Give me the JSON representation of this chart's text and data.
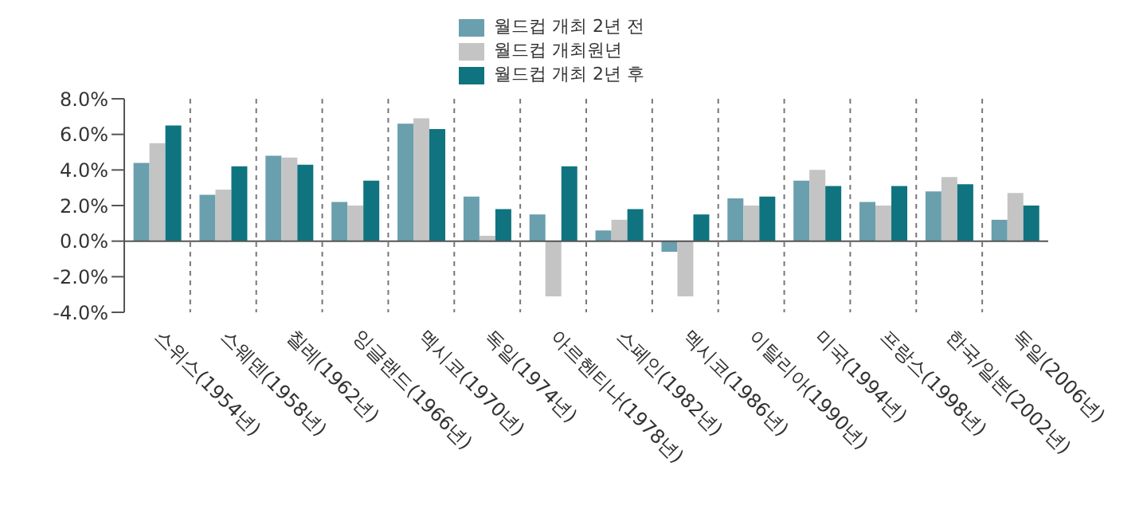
{
  "chart_data": {
    "type": "bar",
    "categories": [
      "스위스(1954년)",
      "스웨덴(1958년)",
      "칠레(1962년)",
      "잉글랜드(1966년)",
      "멕시코(1970년)",
      "독일(1974년)",
      "아르헨티나(1978년)",
      "스페인(1982년)",
      "멕시코(1986년)",
      "이탈리아(1990년)",
      "미국(1994년)",
      "프랑스(1998년)",
      "한국/일본(2002년)",
      "독일(2006년)"
    ],
    "series": [
      {
        "name": "월드컵 개최 2년 전",
        "color": "#6a9fae",
        "values": [
          4.4,
          2.6,
          4.8,
          2.2,
          6.6,
          2.5,
          1.5,
          0.6,
          -0.6,
          2.4,
          3.4,
          2.2,
          2.8,
          1.2
        ]
      },
      {
        "name": "월드컵 개최원년",
        "color": "#c4c4c4",
        "values": [
          5.5,
          2.9,
          4.7,
          2.0,
          6.9,
          0.3,
          -3.1,
          1.2,
          -3.1,
          2.0,
          4.0,
          2.0,
          3.6,
          2.7
        ]
      },
      {
        "name": "월드컵 개최 2년 후",
        "color": "#0f7480",
        "values": [
          6.5,
          4.2,
          4.3,
          3.4,
          6.3,
          1.8,
          4.2,
          1.8,
          1.5,
          2.5,
          3.1,
          3.1,
          3.2,
          2.0
        ]
      }
    ],
    "ylim": [
      -4,
      8
    ],
    "yticks": [
      {
        "value": -4,
        "label": "-4.0%"
      },
      {
        "value": -2,
        "label": "-2.0%"
      },
      {
        "value": 0,
        "label": "0.0%"
      },
      {
        "value": 2,
        "label": "2.0%"
      },
      {
        "value": 4,
        "label": "4.0%"
      },
      {
        "value": 6,
        "label": "6.0%"
      },
      {
        "value": 8,
        "label": "8.0%"
      }
    ],
    "grid": "x",
    "legend": "top"
  }
}
